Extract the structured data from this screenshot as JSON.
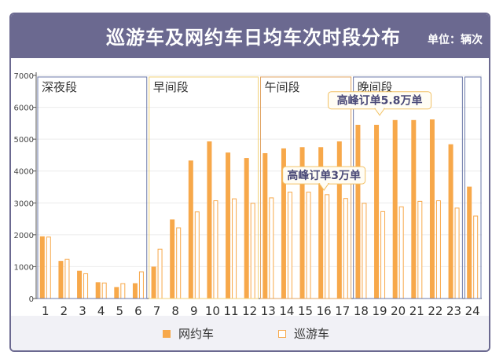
{
  "chart_data": {
    "type": "bar",
    "title": "巡游车及网约车日均车次时段分布",
    "unit_label": "单位：辆次",
    "categories": [
      "1",
      "2",
      "3",
      "4",
      "5",
      "6",
      "7",
      "8",
      "9",
      "10",
      "11",
      "12",
      "13",
      "14",
      "15",
      "16",
      "17",
      "18",
      "19",
      "20",
      "21",
      "22",
      "23",
      "24"
    ],
    "series": [
      {
        "name": "网约车",
        "color": "#f7a84a",
        "style": "filled",
        "values": [
          1950,
          1180,
          870,
          510,
          360,
          480,
          1000,
          2480,
          4330,
          4930,
          4580,
          4410,
          4560,
          4710,
          4750,
          4750,
          4930,
          5450,
          5450,
          5600,
          5600,
          5620,
          4840,
          3510
        ]
      },
      {
        "name": "巡游车",
        "color": "#f7a84a",
        "style": "outline",
        "values": [
          1940,
          1240,
          790,
          500,
          480,
          850,
          1560,
          2230,
          2730,
          3080,
          3140,
          3000,
          3170,
          3350,
          3350,
          3270,
          3150,
          3000,
          2740,
          2890,
          3060,
          3080,
          2850,
          2600
        ]
      }
    ],
    "ylim": [
      0,
      7000
    ],
    "yticks": [
      0,
      1000,
      2000,
      3000,
      4000,
      5000,
      6000,
      7000
    ],
    "grid": true,
    "legend_position": "bottom-center",
    "periods": [
      {
        "label": "深夜段",
        "start": 1,
        "end": 6,
        "border_color": "#6b78a8"
      },
      {
        "label": "早间段",
        "start": 7,
        "end": 12,
        "border_color": "#f2d27a"
      },
      {
        "label": "午间段",
        "start": 13,
        "end": 17,
        "border_color": "#e0a463"
      },
      {
        "label": "晚间段",
        "start": 18,
        "end": 23,
        "border_color": "#6b78a8"
      },
      {
        "label": "",
        "start": 24,
        "end": 24,
        "border_color": "#6b78a8"
      }
    ],
    "annotations": [
      {
        "text": "高峰订单3万单",
        "category": "16",
        "value": 3350
      },
      {
        "text": "高峰订单5.8万单",
        "category": "19",
        "value": 5700
      }
    ]
  }
}
